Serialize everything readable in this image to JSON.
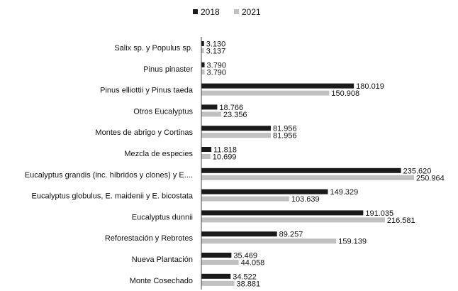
{
  "chart_data": {
    "type": "bar",
    "orientation": "horizontal",
    "title": "",
    "xlabel": "",
    "ylabel": "",
    "xlim": [
      0,
      251000
    ],
    "grid": false,
    "legend_position": "top-center",
    "categories": [
      "Salix sp. y Populus sp.",
      "Pinus pinaster",
      "Pinus elliottii y Pinus taeda",
      "Otros Eucalyptus",
      "Montes de abrigo y Cortinas",
      "Mezcla de especies",
      "Eucalyptus grandis (inc. híbridos y clones) y E....",
      "Eucalyptus globulus, E. maidenii y E. bicostata",
      "Eucalyptus dunnii",
      "Reforestación y Rebrotes",
      "Nueva Plantación",
      "Monte Cosechado"
    ],
    "series": [
      {
        "name": "2018",
        "color": "#1a1a1a",
        "values": [
          3130,
          3790,
          180019,
          18766,
          81956,
          11818,
          235620,
          149329,
          191035,
          89257,
          35469,
          34522
        ],
        "labels": [
          "3.130",
          "3.790",
          "180.019",
          "18.766",
          "81.956",
          "11.818",
          "235.620",
          "149.329",
          "191.035",
          "89.257",
          "35.469",
          "34.522"
        ]
      },
      {
        "name": "2021",
        "color": "#c0c0c0",
        "values": [
          3137,
          3790,
          150908,
          23356,
          81956,
          10699,
          250964,
          103639,
          216581,
          159139,
          44058,
          38881
        ],
        "labels": [
          "3.137",
          "3.790",
          "150.908",
          "23.356",
          "81.956",
          "10.699",
          "250.964",
          "103.639",
          "216.581",
          "159.139",
          "44.058",
          "38.881"
        ]
      }
    ]
  }
}
